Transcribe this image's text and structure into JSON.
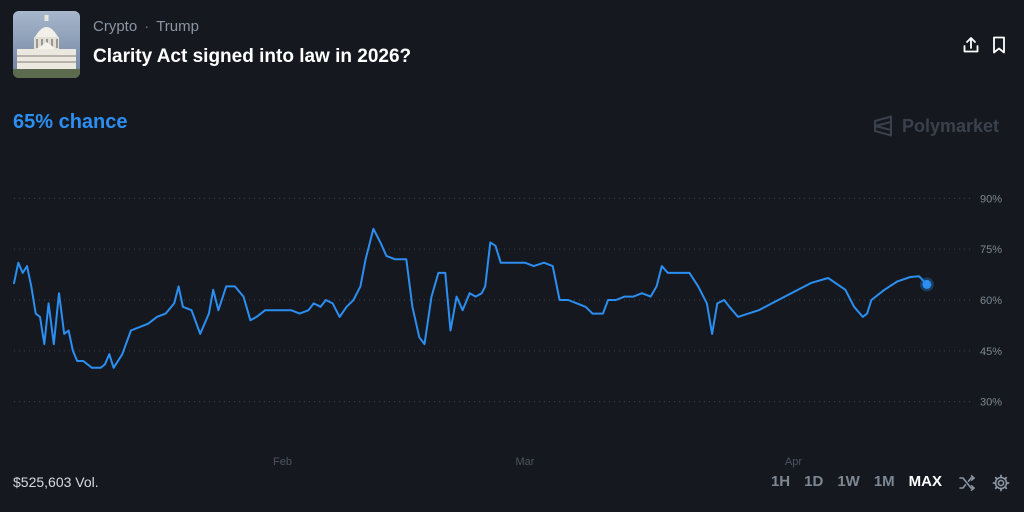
{
  "header": {
    "category": "Crypto",
    "subcategory": "Trump",
    "title": "Clarity Act signed into law in 2026?"
  },
  "chance_label": "65% chance",
  "brand": "Polymarket",
  "volume_label": "$525,603 Vol.",
  "time_ranges": [
    {
      "label": "1H",
      "active": false
    },
    {
      "label": "1D",
      "active": false
    },
    {
      "label": "1W",
      "active": false
    },
    {
      "label": "1M",
      "active": false
    },
    {
      "label": "MAX",
      "active": true
    }
  ],
  "icons": {
    "share": "share-icon",
    "bookmark": "bookmark-icon",
    "shuffle": "shuffle-icon",
    "settings": "gear-icon",
    "thumbnail": "capitol-building-image"
  },
  "colors": {
    "line": "#2b8ef0",
    "background": "#15191f",
    "grid": "#3a414c"
  },
  "chart_data": {
    "type": "line",
    "title": "",
    "xlabel": "",
    "ylabel": "",
    "ylim": [
      24,
      96
    ],
    "y_ticks": [
      90,
      75,
      60,
      45,
      30
    ],
    "y_tick_labels": [
      "90%",
      "75%",
      "60%",
      "45%",
      "30%"
    ],
    "x_tick_labels": [
      "Feb",
      "Mar",
      "Apr"
    ],
    "x_tick_positions": [
      31,
      59,
      90
    ],
    "xlim": [
      0,
      115
    ],
    "grid": true,
    "legend": "none",
    "series": [
      {
        "values": [
          [
            0,
            65
          ],
          [
            0.5,
            71
          ],
          [
            1,
            68
          ],
          [
            1.5,
            70
          ],
          [
            2,
            64
          ],
          [
            2.5,
            56
          ],
          [
            3,
            55
          ],
          [
            3.5,
            47
          ],
          [
            4,
            59
          ],
          [
            4.6,
            47
          ],
          [
            5.2,
            62
          ],
          [
            5.8,
            50
          ],
          [
            6.3,
            51
          ],
          [
            6.8,
            45
          ],
          [
            7.3,
            42
          ],
          [
            8,
            42
          ],
          [
            9,
            40
          ],
          [
            10,
            40
          ],
          [
            10.5,
            41
          ],
          [
            11,
            44
          ],
          [
            11.5,
            40
          ],
          [
            12.5,
            44
          ],
          [
            13.5,
            51
          ],
          [
            14.5,
            52
          ],
          [
            15.5,
            53
          ],
          [
            16.5,
            55
          ],
          [
            17.5,
            56
          ],
          [
            18.5,
            59
          ],
          [
            19,
            64
          ],
          [
            19.5,
            58
          ],
          [
            20.5,
            57
          ],
          [
            21.5,
            50
          ],
          [
            22.5,
            56
          ],
          [
            23,
            63
          ],
          [
            23.6,
            57
          ],
          [
            24.5,
            64
          ],
          [
            25.5,
            64
          ],
          [
            26.5,
            61
          ],
          [
            27.3,
            54
          ],
          [
            28,
            55
          ],
          [
            29,
            57
          ],
          [
            30,
            57
          ],
          [
            31,
            57
          ],
          [
            32,
            57
          ],
          [
            33,
            56
          ],
          [
            34,
            57
          ],
          [
            34.6,
            59
          ],
          [
            35.4,
            58
          ],
          [
            36,
            60
          ],
          [
            36.8,
            59
          ],
          [
            37.6,
            55
          ],
          [
            38.4,
            58
          ],
          [
            39.2,
            60
          ],
          [
            40,
            64
          ],
          [
            40.6,
            72
          ],
          [
            41.5,
            81
          ],
          [
            42.3,
            77
          ],
          [
            43,
            73
          ],
          [
            44,
            72
          ],
          [
            45.3,
            72
          ],
          [
            46,
            58
          ],
          [
            46.8,
            49
          ],
          [
            47.4,
            47
          ],
          [
            48.2,
            61
          ],
          [
            49,
            68
          ],
          [
            49.8,
            68
          ],
          [
            50.4,
            51
          ],
          [
            51.1,
            61
          ],
          [
            51.8,
            57
          ],
          [
            52.6,
            62
          ],
          [
            53.3,
            61
          ],
          [
            54,
            62
          ],
          [
            54.4,
            64
          ],
          [
            55,
            77
          ],
          [
            55.6,
            76
          ],
          [
            56.2,
            71
          ],
          [
            57,
            71
          ],
          [
            58,
            71
          ],
          [
            59,
            71
          ],
          [
            60,
            70
          ],
          [
            61.2,
            71
          ],
          [
            62.2,
            70
          ],
          [
            63,
            60
          ],
          [
            64,
            60
          ],
          [
            65,
            59
          ],
          [
            66,
            58
          ],
          [
            66.8,
            56
          ],
          [
            68,
            56
          ],
          [
            68.6,
            60
          ],
          [
            69.5,
            60
          ],
          [
            70.5,
            61
          ],
          [
            71.5,
            61
          ],
          [
            72.5,
            62
          ],
          [
            73.5,
            61
          ],
          [
            74.2,
            64
          ],
          [
            74.8,
            70
          ],
          [
            75.5,
            68
          ],
          [
            76.8,
            68
          ],
          [
            78,
            68
          ],
          [
            79,
            64
          ],
          [
            80,
            59
          ],
          [
            80.6,
            50
          ],
          [
            81.2,
            59
          ],
          [
            82,
            60
          ],
          [
            82.6,
            58
          ],
          [
            83.6,
            55
          ],
          [
            86,
            57
          ],
          [
            89,
            61
          ],
          [
            92,
            65
          ],
          [
            94,
            66.5
          ],
          [
            96,
            63
          ],
          [
            97,
            58
          ],
          [
            98,
            55
          ],
          [
            98.5,
            56
          ],
          [
            99,
            60
          ],
          [
            100.5,
            63
          ],
          [
            102,
            65.5
          ],
          [
            103.5,
            66.8
          ],
          [
            104.5,
            67
          ],
          [
            105.4,
            64.6
          ]
        ]
      }
    ],
    "last_point": [
      105.4,
      64.6
    ]
  }
}
